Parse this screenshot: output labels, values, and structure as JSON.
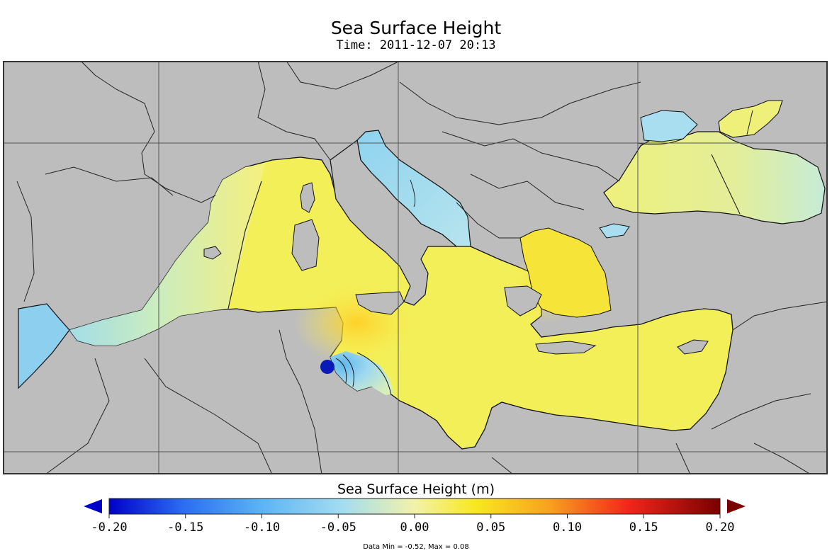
{
  "title": "Sea Surface Height",
  "subtitle": "Time: 2011-12-07 20:13",
  "colorbar": {
    "title": "Sea Surface Height (m)",
    "ticks": [
      "-0.20",
      "-0.15",
      "-0.10",
      "-0.05",
      "0.00",
      "0.05",
      "0.10",
      "0.15",
      "0.20"
    ],
    "min_color": "#0000c8",
    "max_color": "#7a0000"
  },
  "footnote": "Data Min = -0.52, Max = 0.08",
  "colors": {
    "land": "#bdbdbd",
    "sea_main": "#f2f25a",
    "sea_light_blue": "#9fd9ee",
    "frame": "#333333"
  }
}
